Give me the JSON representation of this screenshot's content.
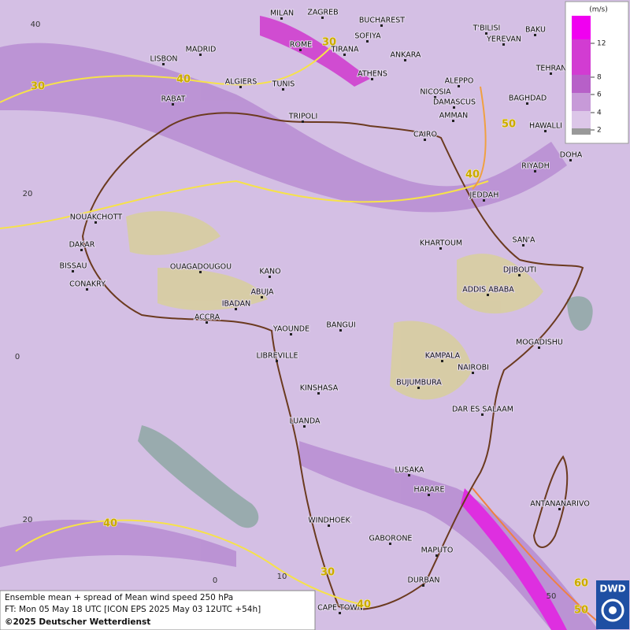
{
  "map": {
    "cities": [
      "MILAN",
      "ZAGREB",
      "BUCHAREST",
      "T'BILISI",
      "BAKU",
      "ROME",
      "SOFIYA",
      "YEREVAN",
      "MADRID",
      "TIRANA",
      "ANKARA",
      "LISBON",
      "ATHENS",
      "TEHRAN",
      "ALGIERS",
      "TUNIS",
      "ALEPPO",
      "RABAT",
      "NICOSIA",
      "BAGHDAD",
      "DAMASCUS",
      "TRIPOLI",
      "AMMAN",
      "HAWALLI",
      "CAIRO",
      "DOHA",
      "RIYADH",
      "JEDDAH",
      "NOUAKCHOTT",
      "SAN'A",
      "KHARTOUM",
      "DAKAR",
      "BISSAU",
      "OUAGADOUGOU",
      "DJIBOUTI",
      "KANO",
      "CONAKRY",
      "ABUJA",
      "ADDIS ABABA",
      "IBADAN",
      "ACCRA",
      "BANGUI",
      "YAOUNDE",
      "MOGADISHU",
      "LIBREVILLE",
      "KAMPALA",
      "NAIROBI",
      "BUJUMBURA",
      "KINSHASA",
      "DAR ES SALAAM",
      "LUANDA",
      "LUSAKA",
      "HARARE",
      "ANTANANARIVO",
      "WINDHOEK",
      "GABORONE",
      "MAPUTO",
      "DURBAN",
      "CAPE TOWN"
    ],
    "contour_labels": [
      "30",
      "40",
      "30",
      "50",
      "40",
      "40",
      "30",
      "40",
      "60",
      "50"
    ],
    "lat_labels": [
      "40",
      "20",
      "0",
      "20"
    ],
    "lon_labels": [
      "0",
      "10",
      "50"
    ],
    "legend": {
      "unit": "(m/s)",
      "ticks": [
        "12",
        "8",
        "6",
        "4",
        "2"
      ]
    },
    "caption": {
      "title": "Ensemble mean + spread of Mean wind speed 250 hPa",
      "forecast": "FT: Mon 05 May 18 UTC [ICON EPS 2025 May 03 12UTC +54h]",
      "copyright": "©2025 Deutscher Wetterdienst"
    },
    "logo": "DWD"
  }
}
